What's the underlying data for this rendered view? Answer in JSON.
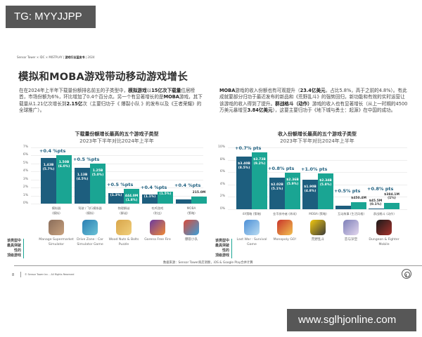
{
  "watermarks": {
    "top": "TG: MYYJJPP",
    "bottom": "www.sglhjonline.com"
  },
  "header": {
    "prefix": "Sensor Tower × IDC × MISTPLAY | ",
    "bold": "游戏行业蓝皮书",
    "suffix": " | 2024"
  },
  "title": "模拟和MOBA游戏带动移动游戏增长",
  "paragraphs": {
    "left": [
      {
        "t": "在在2024年上半年下载量份额排名前五的子类型中，"
      },
      {
        "t": "模拟游戏",
        "b": true
      },
      {
        "t": "以"
      },
      {
        "t": "15亿次下载量",
        "b": true
      },
      {
        "t": "位居榜首，市场份额为6%，环比增加了0.4个百分点。另一个有显著增长的是"
      },
      {
        "t": "MOBA",
        "b": true
      },
      {
        "t": "游戏，其下载量从1.21亿次增长到"
      },
      {
        "t": "2.15亿",
        "b": true
      },
      {
        "t": "次（主要归功于《 爆裂小队 》的发布以及《王者荣耀》的全球推广）。"
      }
    ],
    "right": [
      {
        "t": "MOBA",
        "b": true
      },
      {
        "t": "游戏的收入份额也有可观提升（"
      },
      {
        "t": "23.4亿美元",
        "b": true
      },
      {
        "t": "，占比5.8%，高于之前的4.8%）。有此成就要部分归功于最近发布的新品和《荒野乱斗》的强势回归，新功能和有效的实时运营让该游戏的收入得到了提升。"
      },
      {
        "t": "群战格斗（动作）",
        "b": true
      },
      {
        "t": "游戏的收入也有显著增长（从上一时期的4500万美元暴增至"
      },
      {
        "t": "3.84亿美元",
        "b": true
      },
      {
        "t": "），这要主要归功于《地下城与勇士：起源》在中国的成功。"
      }
    ]
  },
  "chart_data": [
    {
      "type": "bar",
      "title": "下载量份额增长最高的五个游戏子类型",
      "subtitle": "2023年下半年对比2024年上半年",
      "xlabel": "",
      "ylabel": "下载量份额",
      "ylim": [
        0,
        7
      ],
      "yticks": [
        "0%",
        "1%",
        "2%",
        "3%",
        "4%",
        "5%",
        "6%",
        "7%"
      ],
      "grid": true,
      "categories": [
        "模拟器 (模拟)",
        "驾驶 / 飞行模拟器 (模拟)",
        "物理解谜 (解谜)",
        "吃鸡游戏 (射击)",
        "MOBA (策略)"
      ],
      "series": [
        {
          "name": "2023年下半年",
          "color": "#1d5e7e",
          "values": [
            5.7,
            4.5,
            1.3,
            1.1,
            0.5
          ],
          "labels": [
            "1.43B",
            "1.13B",
            "",
            "",
            ""
          ]
        },
        {
          "name": "2024年上半年",
          "color": "#1aa593",
          "values": [
            6.0,
            5.0,
            1.8,
            1.5,
            0.9
          ],
          "labels": [
            "1.50B",
            "1.25B",
            "444.0M",
            "",
            "215.0M"
          ]
        }
      ],
      "deltas": [
        "+0.4 %pts",
        "+0.5 %pts",
        "+0.5 %pts",
        "+0.4 %pts",
        "+0.4 %pts"
      ]
    },
    {
      "type": "bar",
      "title": "收入份额增长最高的五个游戏子类型",
      "subtitle": "2023年下半年对比2024年上半年",
      "xlabel": "",
      "ylabel": "收入份额",
      "ylim": [
        0,
        10
      ],
      "yticks": [
        "0%",
        "2%",
        "4%",
        "6%",
        "8%",
        "10%"
      ],
      "grid": true,
      "categories": [
        "4X策略 (策略)",
        "金币掠夺者 (休闲)",
        "MOBA (策略)",
        "互动故事 (生活风格)",
        "群战格斗 (动作)"
      ],
      "series": [
        {
          "name": "2023年下半年",
          "color": "#1d5e7e",
          "values": [
            8.5,
            5.1,
            4.8,
            0.6,
            0.1
          ],
          "labels": [
            "$3.40B",
            "$2.02B",
            "$1.90B",
            "",
            "$45.5M"
          ]
        },
        {
          "name": "2024年上半年",
          "color": "#1aa593",
          "values": [
            9.2,
            5.9,
            5.8,
            1.1,
            1.0
          ],
          "labels": [
            "$3.73B",
            "$2.36B",
            "$2.34B",
            "$450.4M",
            "$384.1M"
          ]
        }
      ],
      "deltas": [
        "+0.7% pts",
        "+0.8% pts",
        "+1.0% pts",
        "+0.5% pts",
        "+0.8% pts"
      ]
    }
  ],
  "left_chart": {
    "title": "下载量份额增长最高的五个游戏子类型",
    "subtitle": "2023年下半年对比2024年上半年",
    "yticks": [
      "7%",
      "6%",
      "5%",
      "4%",
      "3%",
      "2%",
      "1%",
      "0%"
    ],
    "groups": [
      {
        "cat": "模拟器",
        "sub": "(模拟)",
        "delta": "+0.4 %pts",
        "a": "1.43B\n(5.7%)",
        "b": "1.50B\n(6.0%)",
        "game": "Manage Supermarket Simulator",
        "iconColors": [
          "#8a6d5a",
          "#c9a27e"
        ]
      },
      {
        "cat": "驾驶 / 飞行模拟器",
        "sub": "(模拟)",
        "delta": "+0.5 %pts",
        "a": "1.13B\n(4.5%)",
        "b": "1.25B\n(5.0%)",
        "game": "Drive Zone : Car Simulator Game",
        "iconColors": [
          "#2a7fb3",
          "#6bc2d6"
        ]
      },
      {
        "cat": "物理解谜",
        "sub": "(解谜)",
        "delta": "+0.5 %pts",
        "a": "(1.3%)",
        "b": "444.0M\n(1.8%)",
        "game": "Wood Nuts & Bolts Puzzle",
        "iconColors": [
          "#d8a54a",
          "#f1cf7b"
        ]
      },
      {
        "cat": "吃鸡游戏",
        "sub": "(射击)",
        "delta": "+0.4 %pts",
        "a": "(1.1%)",
        "b": "(1.5%)",
        "game": "Garena Free Fire",
        "iconColors": [
          "#6b3aa0",
          "#f08a34"
        ]
      },
      {
        "cat": "MOBA",
        "sub": "(策略)",
        "delta": "+0.4 %pts",
        "a": "",
        "b": "",
        "out": "215.0M",
        "game": "爆裂小队",
        "iconColors": [
          "#d94b3a",
          "#3a9fd9"
        ]
      }
    ]
  },
  "right_chart": {
    "title": "收入份额增长最高的五个游戏子类型",
    "subtitle": "2023年下半年对比2024年上半年",
    "yticks": [
      "10%",
      "8%",
      "6%",
      "4%",
      "2%",
      "0%"
    ],
    "groups": [
      {
        "cat": "4X策略 (策略)",
        "delta": "+0.7% pts",
        "a": "$3.40B\n(8.5%)",
        "b": "$3.73B\n(9.2%)",
        "game": "Last War : Survival Game",
        "iconColors": [
          "#4c8fd6",
          "#b9dcf2"
        ]
      },
      {
        "cat": "金币掠夺者 (休闲)",
        "delta": "+0.8% pts",
        "a": "$2.02B\n(5.1%)",
        "b": "$2.36B\n(5.9%)",
        "game": "Monopoly GO!",
        "iconColors": [
          "#c8342b",
          "#f2c14e"
        ]
      },
      {
        "cat": "MOBA (策略)",
        "delta": "+1.0% pts",
        "a": "$1.90B\n(4.8%)",
        "b": "$2.34B\n(5.8%)",
        "game": "荒野乱斗",
        "iconColors": [
          "#f2c80f",
          "#3a3a3a"
        ]
      },
      {
        "cat": "互动故事 (生活风格)",
        "delta": "+0.5% pts",
        "a": "",
        "b": "",
        "outb": "$450.4M",
        "game": "恋与深空",
        "iconColors": [
          "#7d7fb8",
          "#e3d7ee"
        ]
      },
      {
        "cat": "群战格斗 (动作)",
        "delta": "+0.8% pts",
        "a": "",
        "b": "",
        "outa": "$45.5M\n(0.1%)",
        "outb": "$384.1M\n(1%)",
        "game": "Dungeon & Fighter Mobile",
        "iconColors": [
          "#1a1a1a",
          "#a8322c"
        ]
      }
    ]
  },
  "side_label": "该类型中\n最具突破性的\n顶级游戏",
  "source": "数据来源：Sensor Tower商店洞察，iOS & Google Play合并计算",
  "footer": {
    "page": "8",
    "copyright": "© Sensor Tower Inc. - All Rights Reserved"
  }
}
